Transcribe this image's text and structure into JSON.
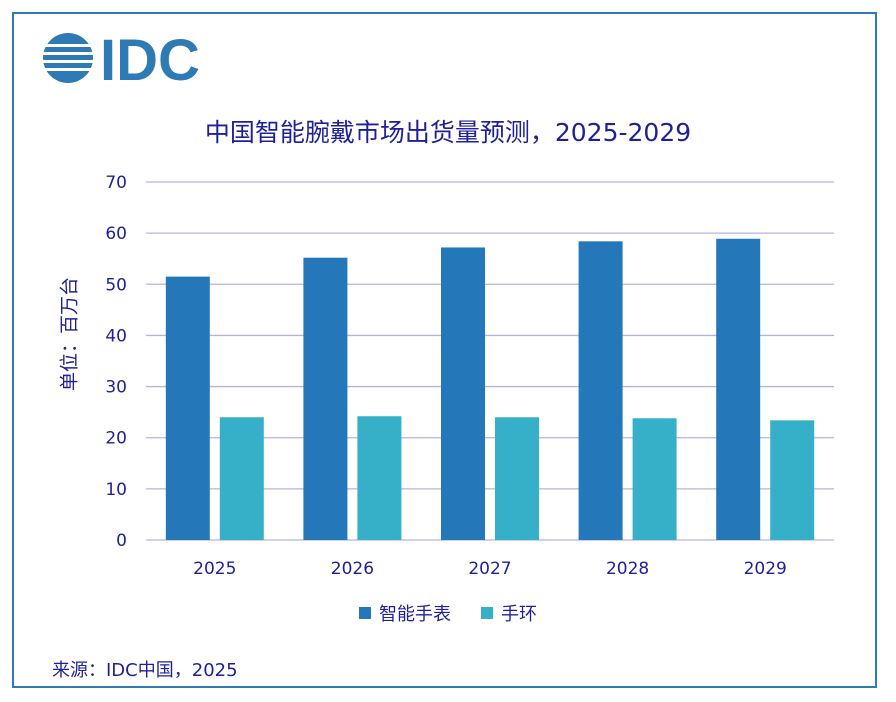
{
  "logo": {
    "text": "IDC",
    "color": "#2e7ab5"
  },
  "chart_data": {
    "type": "bar",
    "title": "中国智能腕戴市场出货量预测，2025-2029",
    "ylabel": "单位：百万台",
    "xlabel": "",
    "categories": [
      "2025",
      "2026",
      "2027",
      "2028",
      "2029"
    ],
    "series": [
      {
        "name": "智能手表",
        "color": "#2477b9",
        "values": [
          51.5,
          55.2,
          57.2,
          58.4,
          58.9
        ]
      },
      {
        "name": "手环",
        "color": "#35b0c8",
        "values": [
          24.0,
          24.2,
          24.0,
          23.8,
          23.4
        ]
      }
    ],
    "ylim": [
      0,
      70
    ],
    "yticks": [
      0,
      10,
      20,
      30,
      40,
      50,
      60,
      70
    ],
    "grid": true,
    "legend_position": "bottom"
  },
  "source": "来源：IDC中国，2025"
}
